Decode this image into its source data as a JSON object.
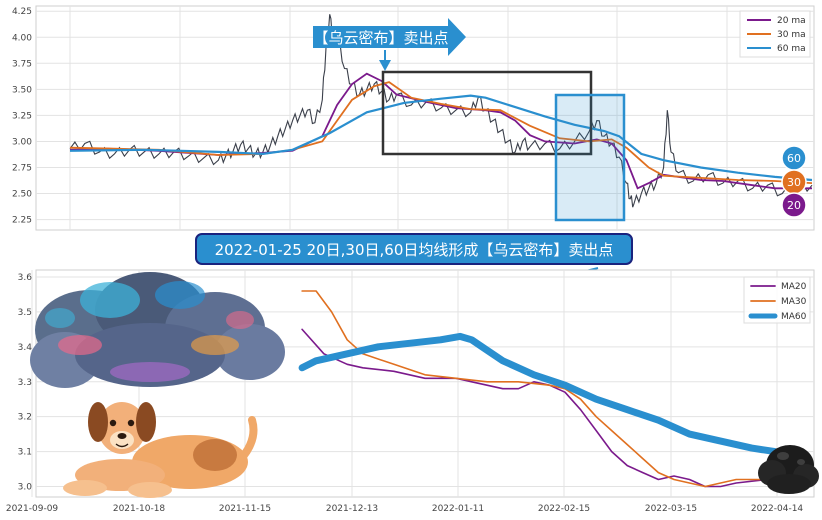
{
  "chart_data": [
    {
      "type": "line",
      "panel": "top",
      "ylim": [
        2.15,
        4.3
      ],
      "y_ticks": [
        "2.25",
        "2.50",
        "2.75",
        "3.00",
        "3.25",
        "3.50",
        "3.75",
        "4.00",
        "4.25"
      ],
      "y_tick_values": [
        2.25,
        2.5,
        2.75,
        3.0,
        3.25,
        3.5,
        3.75,
        4.0,
        4.25
      ],
      "grid": true,
      "legend_position": "top-right",
      "legend": [
        "20 ma",
        "30 ma",
        "60 ma"
      ],
      "series": [
        {
          "name": "20 ma",
          "color": "#7b1a8c",
          "points": [
            [
              0.0,
              2.92
            ],
            [
              0.05,
              2.93
            ],
            [
              0.12,
              2.91
            ],
            [
              0.2,
              2.87
            ],
            [
              0.26,
              2.89
            ],
            [
              0.3,
              2.91
            ],
            [
              0.34,
              3.05
            ],
            [
              0.36,
              3.35
            ],
            [
              0.38,
              3.55
            ],
            [
              0.4,
              3.65
            ],
            [
              0.42,
              3.58
            ],
            [
              0.44,
              3.45
            ],
            [
              0.48,
              3.38
            ],
            [
              0.52,
              3.32
            ],
            [
              0.56,
              3.3
            ],
            [
              0.58,
              3.28
            ],
            [
              0.6,
              3.2
            ],
            [
              0.62,
              3.06
            ],
            [
              0.64,
              3.0
            ],
            [
              0.68,
              2.98
            ],
            [
              0.71,
              3.02
            ],
            [
              0.73,
              2.98
            ],
            [
              0.75,
              2.82
            ],
            [
              0.765,
              2.55
            ],
            [
              0.78,
              2.6
            ],
            [
              0.8,
              2.68
            ],
            [
              0.85,
              2.63
            ],
            [
              0.88,
              2.62
            ],
            [
              0.92,
              2.58
            ],
            [
              0.95,
              2.55
            ],
            [
              1.0,
              2.55
            ]
          ]
        },
        {
          "name": "30 ma",
          "color": "#e07020",
          "points": [
            [
              0.0,
              2.94
            ],
            [
              0.06,
              2.93
            ],
            [
              0.12,
              2.92
            ],
            [
              0.2,
              2.87
            ],
            [
              0.26,
              2.88
            ],
            [
              0.3,
              2.92
            ],
            [
              0.34,
              3.0
            ],
            [
              0.36,
              3.2
            ],
            [
              0.38,
              3.4
            ],
            [
              0.41,
              3.53
            ],
            [
              0.43,
              3.57
            ],
            [
              0.46,
              3.42
            ],
            [
              0.5,
              3.36
            ],
            [
              0.54,
              3.31
            ],
            [
              0.58,
              3.3
            ],
            [
              0.62,
              3.15
            ],
            [
              0.66,
              3.03
            ],
            [
              0.7,
              3.0
            ],
            [
              0.73,
              3.02
            ],
            [
              0.75,
              2.94
            ],
            [
              0.78,
              2.75
            ],
            [
              0.8,
              2.67
            ],
            [
              0.85,
              2.65
            ],
            [
              0.9,
              2.63
            ],
            [
              0.95,
              2.62
            ],
            [
              1.0,
              2.6
            ]
          ]
        },
        {
          "name": "60 ma",
          "color": "#2a8fcf",
          "points": [
            [
              0.0,
              2.91
            ],
            [
              0.1,
              2.92
            ],
            [
              0.2,
              2.9
            ],
            [
              0.26,
              2.88
            ],
            [
              0.3,
              2.92
            ],
            [
              0.35,
              3.08
            ],
            [
              0.4,
              3.28
            ],
            [
              0.45,
              3.37
            ],
            [
              0.5,
              3.41
            ],
            [
              0.54,
              3.44
            ],
            [
              0.56,
              3.42
            ],
            [
              0.6,
              3.33
            ],
            [
              0.64,
              3.24
            ],
            [
              0.68,
              3.16
            ],
            [
              0.72,
              3.1
            ],
            [
              0.74,
              3.05
            ],
            [
              0.77,
              2.88
            ],
            [
              0.8,
              2.82
            ],
            [
              0.85,
              2.75
            ],
            [
              0.9,
              2.7
            ],
            [
              0.95,
              2.66
            ],
            [
              1.0,
              2.63
            ]
          ]
        }
      ],
      "markers": {
        "values": [
          "60",
          "30",
          "20"
        ],
        "colors": [
          "#2a8fcf",
          "#e07020",
          "#7b1a8c"
        ]
      },
      "banner": "【乌云密布】卖出点",
      "price_path": [
        [
          0.0,
          2.93
        ],
        [
          0.02,
          2.98
        ],
        [
          0.04,
          2.9
        ],
        [
          0.06,
          2.88
        ],
        [
          0.08,
          2.92
        ],
        [
          0.1,
          2.9
        ],
        [
          0.12,
          2.88
        ],
        [
          0.14,
          2.9
        ],
        [
          0.16,
          2.86
        ],
        [
          0.18,
          2.84
        ],
        [
          0.2,
          2.82
        ],
        [
          0.21,
          2.86
        ],
        [
          0.22,
          2.91
        ],
        [
          0.23,
          2.97
        ],
        [
          0.24,
          2.93
        ],
        [
          0.25,
          2.88
        ],
        [
          0.26,
          2.9
        ],
        [
          0.27,
          2.96
        ],
        [
          0.28,
          3.05
        ],
        [
          0.29,
          3.12
        ],
        [
          0.3,
          3.2
        ],
        [
          0.31,
          3.25
        ],
        [
          0.32,
          3.3
        ],
        [
          0.33,
          3.18
        ],
        [
          0.34,
          3.4
        ],
        [
          0.345,
          3.9
        ],
        [
          0.35,
          4.22
        ],
        [
          0.355,
          3.95
        ],
        [
          0.36,
          4.05
        ],
        [
          0.37,
          3.7
        ],
        [
          0.38,
          3.55
        ],
        [
          0.39,
          3.45
        ],
        [
          0.4,
          3.5
        ],
        [
          0.41,
          3.55
        ],
        [
          0.42,
          3.48
        ],
        [
          0.43,
          3.4
        ],
        [
          0.44,
          3.45
        ],
        [
          0.46,
          3.35
        ],
        [
          0.48,
          3.38
        ],
        [
          0.5,
          3.32
        ],
        [
          0.52,
          3.3
        ],
        [
          0.54,
          3.28
        ],
        [
          0.55,
          3.42
        ],
        [
          0.56,
          3.3
        ],
        [
          0.57,
          3.2
        ],
        [
          0.58,
          3.1
        ],
        [
          0.59,
          3.0
        ],
        [
          0.6,
          2.9
        ],
        [
          0.61,
          3.0
        ],
        [
          0.62,
          2.95
        ],
        [
          0.64,
          2.98
        ],
        [
          0.66,
          2.93
        ],
        [
          0.68,
          3.0
        ],
        [
          0.7,
          3.1
        ],
        [
          0.71,
          3.2
        ],
        [
          0.72,
          3.05
        ],
        [
          0.73,
          2.98
        ],
        [
          0.74,
          2.85
        ],
        [
          0.75,
          2.6
        ],
        [
          0.755,
          2.45
        ],
        [
          0.76,
          2.4
        ],
        [
          0.77,
          2.5
        ],
        [
          0.78,
          2.55
        ],
        [
          0.79,
          2.6
        ],
        [
          0.8,
          2.75
        ],
        [
          0.805,
          3.3
        ],
        [
          0.81,
          2.9
        ],
        [
          0.82,
          2.7
        ],
        [
          0.84,
          2.62
        ],
        [
          0.86,
          2.68
        ],
        [
          0.88,
          2.6
        ],
        [
          0.9,
          2.62
        ],
        [
          0.92,
          2.55
        ],
        [
          0.94,
          2.58
        ],
        [
          0.96,
          2.5
        ],
        [
          0.98,
          2.55
        ],
        [
          1.0,
          2.58
        ]
      ]
    },
    {
      "type": "line",
      "panel": "bottom",
      "ylim": [
        2.97,
        3.62
      ],
      "y_ticks": [
        "3.0",
        "3.1",
        "3.2",
        "3.3",
        "3.4",
        "3.5",
        "3.6"
      ],
      "y_tick_values": [
        3.0,
        3.1,
        3.2,
        3.3,
        3.4,
        3.5,
        3.6
      ],
      "x_ticks": [
        "2021-09-09",
        "2021-10-18",
        "2021-11-15",
        "2021-12-13",
        "2022-01-11",
        "2022-02-15",
        "2022-03-15",
        "2022-04-14"
      ],
      "grid": true,
      "legend_position": "top-right",
      "legend": [
        "MA20",
        "MA30",
        "MA60"
      ],
      "series": [
        {
          "name": "MA20",
          "color": "#7b1a8c",
          "points": [
            [
              0.342,
              3.45
            ],
            [
              0.37,
              3.38
            ],
            [
              0.4,
              3.35
            ],
            [
              0.42,
              3.34
            ],
            [
              0.46,
              3.33
            ],
            [
              0.5,
              3.31
            ],
            [
              0.54,
              3.31
            ],
            [
              0.56,
              3.3
            ],
            [
              0.6,
              3.28
            ],
            [
              0.62,
              3.28
            ],
            [
              0.64,
              3.3
            ],
            [
              0.66,
              3.29
            ],
            [
              0.68,
              3.27
            ],
            [
              0.7,
              3.22
            ],
            [
              0.72,
              3.16
            ],
            [
              0.74,
              3.1
            ],
            [
              0.76,
              3.06
            ],
            [
              0.78,
              3.04
            ],
            [
              0.8,
              3.02
            ],
            [
              0.82,
              3.03
            ],
            [
              0.84,
              3.02
            ],
            [
              0.86,
              3.0
            ],
            [
              0.88,
              3.0
            ],
            [
              0.9,
              3.01
            ],
            [
              0.94,
              3.02
            ],
            [
              0.97,
              3.03
            ]
          ]
        },
        {
          "name": "MA30",
          "color": "#e07020",
          "points": [
            [
              0.342,
              3.56
            ],
            [
              0.36,
              3.56
            ],
            [
              0.38,
              3.5
            ],
            [
              0.4,
              3.42
            ],
            [
              0.42,
              3.38
            ],
            [
              0.46,
              3.35
            ],
            [
              0.5,
              3.32
            ],
            [
              0.54,
              3.31
            ],
            [
              0.58,
              3.3
            ],
            [
              0.62,
              3.3
            ],
            [
              0.66,
              3.29
            ],
            [
              0.68,
              3.28
            ],
            [
              0.7,
              3.25
            ],
            [
              0.72,
              3.2
            ],
            [
              0.74,
              3.16
            ],
            [
              0.76,
              3.12
            ],
            [
              0.78,
              3.08
            ],
            [
              0.8,
              3.04
            ],
            [
              0.82,
              3.02
            ],
            [
              0.84,
              3.01
            ],
            [
              0.86,
              3.0
            ],
            [
              0.88,
              3.01
            ],
            [
              0.9,
              3.02
            ],
            [
              0.94,
              3.02
            ],
            [
              0.97,
              3.03
            ]
          ]
        },
        {
          "name": "MA60",
          "color": "#2a8fcf",
          "points": [
            [
              0.342,
              3.34
            ],
            [
              0.36,
              3.36
            ],
            [
              0.4,
              3.38
            ],
            [
              0.44,
              3.4
            ],
            [
              0.48,
              3.41
            ],
            [
              0.52,
              3.42
            ],
            [
              0.545,
              3.43
            ],
            [
              0.56,
              3.42
            ],
            [
              0.58,
              3.39
            ],
            [
              0.6,
              3.36
            ],
            [
              0.64,
              3.32
            ],
            [
              0.68,
              3.29
            ],
            [
              0.72,
              3.25
            ],
            [
              0.76,
              3.22
            ],
            [
              0.8,
              3.19
            ],
            [
              0.84,
              3.15
            ],
            [
              0.88,
              3.13
            ],
            [
              0.92,
              3.11
            ],
            [
              0.95,
              3.1
            ]
          ]
        }
      ],
      "banner": "2022-01-25 20日,30日,60日均线形成【乌云密布】卖出点"
    }
  ],
  "colors": {
    "accent_banner": "#2a8fcf",
    "banner_border": "#1a237e",
    "price": "#3a3f4a",
    "box_dark": "#333333",
    "box_blue": "#2a8fcf"
  },
  "icons": [
    "storm-cloud-icon",
    "dog-icon",
    "dark-cloud-icon"
  ]
}
